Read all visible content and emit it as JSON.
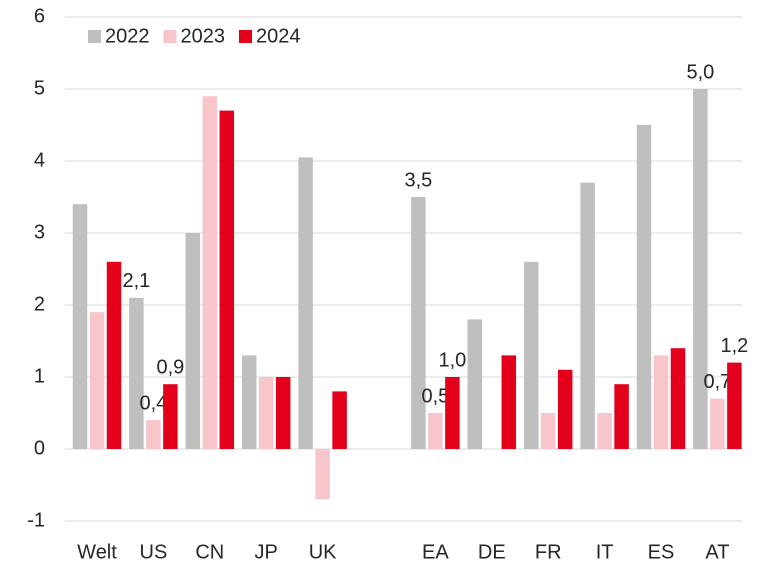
{
  "chart_data": {
    "type": "bar",
    "categories": [
      "Welt",
      "US",
      "CN",
      "JP",
      "UK",
      null,
      "EA",
      "DE",
      "FR",
      "IT",
      "ES",
      "AT"
    ],
    "series": [
      {
        "name": "2022",
        "color": "#bfbfbf",
        "values": [
          3.4,
          2.1,
          3.0,
          1.3,
          4.05,
          null,
          3.5,
          1.8,
          2.6,
          3.7,
          4.5,
          5.0
        ],
        "value_labels": [
          null,
          "2,1",
          null,
          null,
          null,
          null,
          "3,5",
          null,
          null,
          null,
          null,
          "5,0"
        ]
      },
      {
        "name": "2023",
        "color": "#f8c5cb",
        "values": [
          1.9,
          0.4,
          4.9,
          1.0,
          -0.7,
          null,
          0.5,
          0,
          0.5,
          0.5,
          1.3,
          0.7
        ],
        "value_labels": [
          null,
          "0,4",
          null,
          null,
          null,
          null,
          "0,5",
          null,
          null,
          null,
          null,
          "0,7"
        ]
      },
      {
        "name": "2024",
        "color": "#e2001a",
        "values": [
          2.6,
          0.9,
          4.7,
          1.0,
          0.8,
          null,
          1.0,
          1.3,
          1.1,
          0.9,
          1.4,
          1.2
        ],
        "value_labels": [
          null,
          "0,9",
          null,
          null,
          null,
          null,
          "1,0",
          null,
          null,
          null,
          null,
          "1,2"
        ]
      }
    ],
    "ylim": [
      -1,
      6
    ],
    "yticks": [
      -1,
      0,
      1,
      2,
      3,
      4,
      5,
      6
    ],
    "grid": true,
    "legend": "top-left"
  }
}
